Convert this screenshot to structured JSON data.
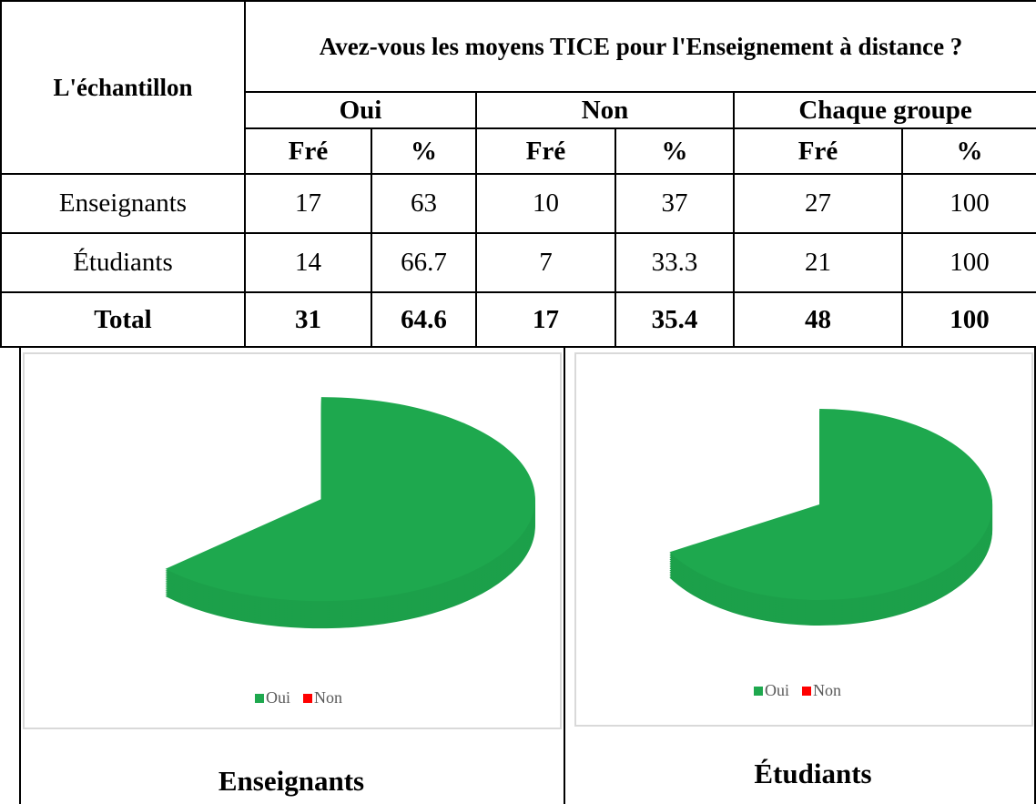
{
  "table": {
    "header": {
      "sample": "L'échantillon",
      "question": "Avez-vous les moyens TICE pour l'Enseignement à distance ?",
      "groups": [
        "Oui",
        "Non",
        "Chaque groupe"
      ],
      "subheaders": [
        "Fré",
        "%",
        "Fré",
        "%",
        "Fré",
        "%"
      ]
    },
    "rows": [
      [
        "Enseignants",
        17,
        63,
        10,
        37,
        27,
        100
      ],
      [
        "Étudiants",
        14,
        66.7,
        7,
        33.3,
        21,
        100
      ],
      [
        "Total",
        31,
        64.6,
        17,
        35.4,
        48,
        100
      ]
    ]
  },
  "charts": [
    {
      "type": "pie",
      "caption": "Enseignants",
      "series": [
        {
          "name": "Oui",
          "color": "#1ea84e",
          "value": 63
        },
        {
          "name": "Non",
          "color": "#ff0000",
          "value": 37
        }
      ]
    },
    {
      "type": "pie",
      "caption": "Étudiants",
      "series": [
        {
          "name": "Oui",
          "color": "#1ea84e",
          "value": 66.7
        },
        {
          "name": "Non",
          "color": "#ff0000",
          "value": 33.3
        }
      ]
    }
  ]
}
